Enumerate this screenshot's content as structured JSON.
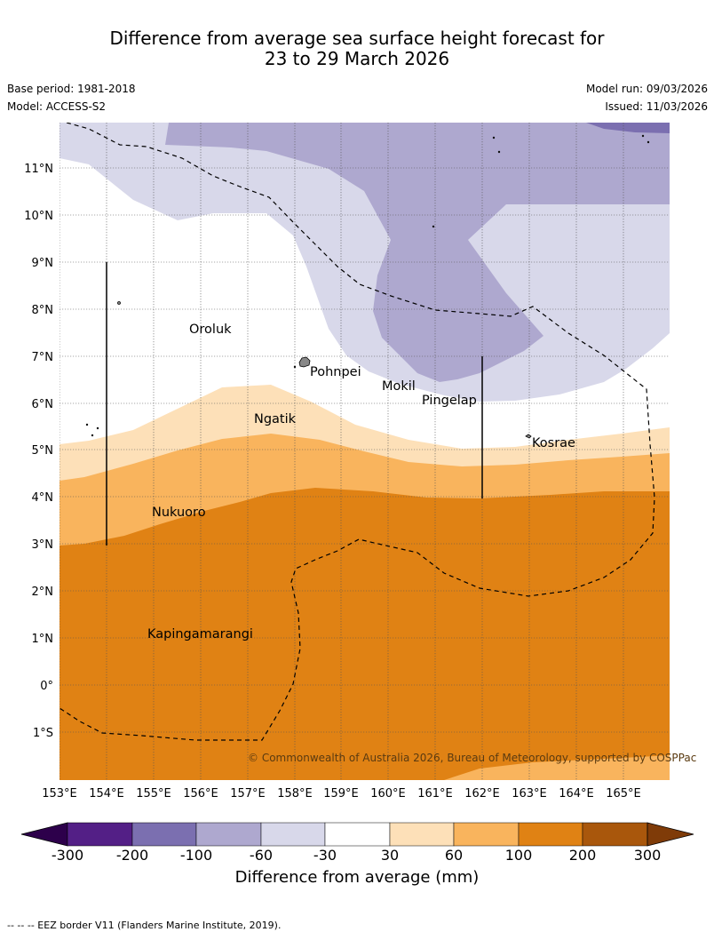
{
  "title": {
    "line1": "Difference from average sea surface height forecast for",
    "line2": "23 to 29 March 2026"
  },
  "meta": {
    "base_period": "Base period: 1981-2018",
    "model": "Model: ACCESS-S2",
    "model_run": "Model run: 09/03/2026",
    "issued": "Issued: 11/03/2026"
  },
  "map": {
    "lat_labels": [
      "11°N",
      "10°N",
      "9°N",
      "8°N",
      "7°N",
      "6°N",
      "5°N",
      "4°N",
      "3°N",
      "2°N",
      "1°N",
      "0°",
      "1°S"
    ],
    "lon_labels": [
      "153°E",
      "154°E",
      "155°E",
      "156°E",
      "157°E",
      "158°E",
      "159°E",
      "160°E",
      "161°E",
      "162°E",
      "163°E",
      "164°E",
      "165°E"
    ],
    "places": [
      {
        "name": "Oroluk"
      },
      {
        "name": "Pohnpei"
      },
      {
        "name": "Mokil"
      },
      {
        "name": "Pingelap"
      },
      {
        "name": "Ngatik"
      },
      {
        "name": "Kosrae"
      },
      {
        "name": "Nukuoro"
      },
      {
        "name": "Kapingamarangi"
      }
    ],
    "copyright": "© Commonwealth of Australia 2026, Bureau of Meteorology, supported by COSPPac"
  },
  "colorbar": {
    "title": "Difference from average (mm)",
    "tick_labels": [
      "-300",
      "-200",
      "-100",
      "-60",
      "-30",
      "30",
      "60",
      "100",
      "200",
      "300"
    ],
    "colors": [
      "#531f86",
      "#7b6fb0",
      "#aea8cf",
      "#d8d8ea",
      "#ffffff",
      "#fde0b8",
      "#f9b45d",
      "#e08214",
      "#a9570c"
    ],
    "extend_low_color": "#2d004b",
    "extend_high_color": "#7f3b08"
  },
  "footnote": "--  --  -- EEZ border V11 (Flanders Marine Institute, 2019)."
}
